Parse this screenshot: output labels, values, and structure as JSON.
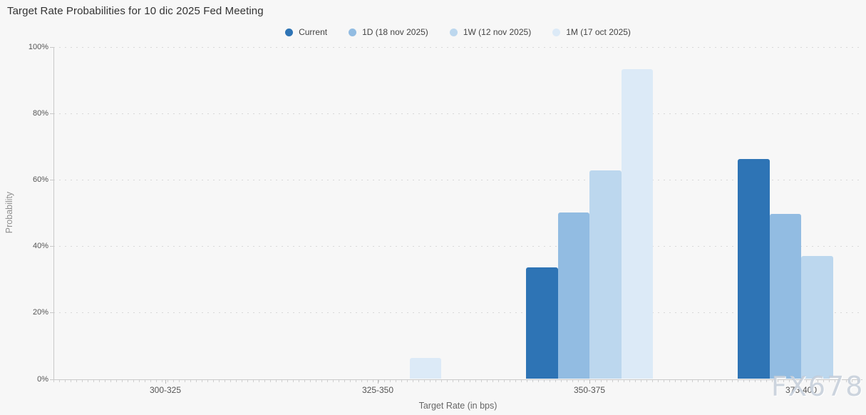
{
  "watermark": "FX678",
  "chart_data": {
    "type": "bar",
    "title": "Target Rate Probabilities for 10 dic 2025 Fed Meeting",
    "xlabel": "Target Rate (in bps)",
    "ylabel": "Probability",
    "categories": [
      "300-325",
      "325-350",
      "350-375",
      "375-400"
    ],
    "series": [
      {
        "name": "Current",
        "color": "#2e74b5",
        "values": [
          0,
          0,
          33.7,
          66.3
        ]
      },
      {
        "name": "1D (18 nov 2025)",
        "color": "#92bce2",
        "values": [
          0,
          0,
          50.2,
          49.8
        ]
      },
      {
        "name": "1W (12 nov 2025)",
        "color": "#bcd7ee",
        "values": [
          0,
          0,
          62.9,
          37.1
        ]
      },
      {
        "name": "1M (17 oct 2025)",
        "color": "#dceaf7",
        "values": [
          0,
          6.3,
          93.4,
          0
        ]
      }
    ],
    "ylim": [
      0,
      100
    ],
    "yticks": [
      "0%",
      "20%",
      "40%",
      "60%",
      "80%",
      "100%"
    ],
    "grid": "dotted-horizontal",
    "legend_position": "top-center"
  }
}
